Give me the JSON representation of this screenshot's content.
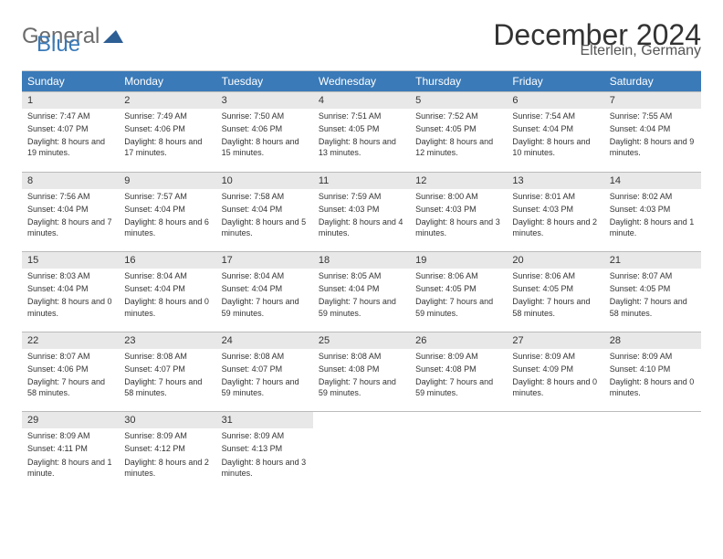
{
  "logo": {
    "part1": "General",
    "part2": "Blue"
  },
  "title": "December 2024",
  "subtitle": "Elterlein, Germany",
  "colors": {
    "header_bg": "#3a7ab8",
    "header_fg": "#ffffff",
    "num_bg": "#e8e8e8",
    "logo_gray": "#6b6b6b",
    "logo_blue": "#3a7ab8"
  },
  "dayNames": [
    "Sunday",
    "Monday",
    "Tuesday",
    "Wednesday",
    "Thursday",
    "Friday",
    "Saturday"
  ],
  "days": [
    {
      "n": "1",
      "sunrise": "7:47 AM",
      "sunset": "4:07 PM",
      "daylight": "8 hours and 19 minutes."
    },
    {
      "n": "2",
      "sunrise": "7:49 AM",
      "sunset": "4:06 PM",
      "daylight": "8 hours and 17 minutes."
    },
    {
      "n": "3",
      "sunrise": "7:50 AM",
      "sunset": "4:06 PM",
      "daylight": "8 hours and 15 minutes."
    },
    {
      "n": "4",
      "sunrise": "7:51 AM",
      "sunset": "4:05 PM",
      "daylight": "8 hours and 13 minutes."
    },
    {
      "n": "5",
      "sunrise": "7:52 AM",
      "sunset": "4:05 PM",
      "daylight": "8 hours and 12 minutes."
    },
    {
      "n": "6",
      "sunrise": "7:54 AM",
      "sunset": "4:04 PM",
      "daylight": "8 hours and 10 minutes."
    },
    {
      "n": "7",
      "sunrise": "7:55 AM",
      "sunset": "4:04 PM",
      "daylight": "8 hours and 9 minutes."
    },
    {
      "n": "8",
      "sunrise": "7:56 AM",
      "sunset": "4:04 PM",
      "daylight": "8 hours and 7 minutes."
    },
    {
      "n": "9",
      "sunrise": "7:57 AM",
      "sunset": "4:04 PM",
      "daylight": "8 hours and 6 minutes."
    },
    {
      "n": "10",
      "sunrise": "7:58 AM",
      "sunset": "4:04 PM",
      "daylight": "8 hours and 5 minutes."
    },
    {
      "n": "11",
      "sunrise": "7:59 AM",
      "sunset": "4:03 PM",
      "daylight": "8 hours and 4 minutes."
    },
    {
      "n": "12",
      "sunrise": "8:00 AM",
      "sunset": "4:03 PM",
      "daylight": "8 hours and 3 minutes."
    },
    {
      "n": "13",
      "sunrise": "8:01 AM",
      "sunset": "4:03 PM",
      "daylight": "8 hours and 2 minutes."
    },
    {
      "n": "14",
      "sunrise": "8:02 AM",
      "sunset": "4:03 PM",
      "daylight": "8 hours and 1 minute."
    },
    {
      "n": "15",
      "sunrise": "8:03 AM",
      "sunset": "4:04 PM",
      "daylight": "8 hours and 0 minutes."
    },
    {
      "n": "16",
      "sunrise": "8:04 AM",
      "sunset": "4:04 PM",
      "daylight": "8 hours and 0 minutes."
    },
    {
      "n": "17",
      "sunrise": "8:04 AM",
      "sunset": "4:04 PM",
      "daylight": "7 hours and 59 minutes."
    },
    {
      "n": "18",
      "sunrise": "8:05 AM",
      "sunset": "4:04 PM",
      "daylight": "7 hours and 59 minutes."
    },
    {
      "n": "19",
      "sunrise": "8:06 AM",
      "sunset": "4:05 PM",
      "daylight": "7 hours and 59 minutes."
    },
    {
      "n": "20",
      "sunrise": "8:06 AM",
      "sunset": "4:05 PM",
      "daylight": "7 hours and 58 minutes."
    },
    {
      "n": "21",
      "sunrise": "8:07 AM",
      "sunset": "4:05 PM",
      "daylight": "7 hours and 58 minutes."
    },
    {
      "n": "22",
      "sunrise": "8:07 AM",
      "sunset": "4:06 PM",
      "daylight": "7 hours and 58 minutes."
    },
    {
      "n": "23",
      "sunrise": "8:08 AM",
      "sunset": "4:07 PM",
      "daylight": "7 hours and 58 minutes."
    },
    {
      "n": "24",
      "sunrise": "8:08 AM",
      "sunset": "4:07 PM",
      "daylight": "7 hours and 59 minutes."
    },
    {
      "n": "25",
      "sunrise": "8:08 AM",
      "sunset": "4:08 PM",
      "daylight": "7 hours and 59 minutes."
    },
    {
      "n": "26",
      "sunrise": "8:09 AM",
      "sunset": "4:08 PM",
      "daylight": "7 hours and 59 minutes."
    },
    {
      "n": "27",
      "sunrise": "8:09 AM",
      "sunset": "4:09 PM",
      "daylight": "8 hours and 0 minutes."
    },
    {
      "n": "28",
      "sunrise": "8:09 AM",
      "sunset": "4:10 PM",
      "daylight": "8 hours and 0 minutes."
    },
    {
      "n": "29",
      "sunrise": "8:09 AM",
      "sunset": "4:11 PM",
      "daylight": "8 hours and 1 minute."
    },
    {
      "n": "30",
      "sunrise": "8:09 AM",
      "sunset": "4:12 PM",
      "daylight": "8 hours and 2 minutes."
    },
    {
      "n": "31",
      "sunrise": "8:09 AM",
      "sunset": "4:13 PM",
      "daylight": "8 hours and 3 minutes."
    }
  ],
  "labels": {
    "sunrise": "Sunrise: ",
    "sunset": "Sunset: ",
    "daylight": "Daylight: "
  }
}
